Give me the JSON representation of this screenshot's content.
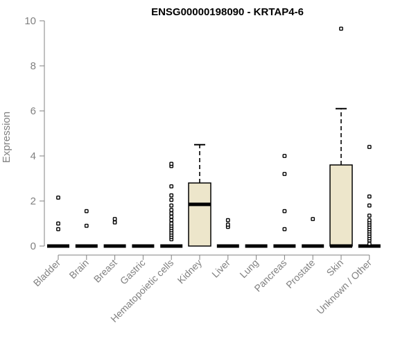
{
  "chart_data": {
    "type": "box",
    "title": "ENSG00000198090 - KRTAP4-6",
    "xlabel": "",
    "ylabel": "Expression",
    "ylim": [
      0,
      10
    ],
    "yticks": [
      0,
      2,
      4,
      6,
      8,
      10
    ],
    "categories": [
      "Bladder",
      "Brain",
      "Breast",
      "Gastric",
      "Hematopoietic cells",
      "Kidney",
      "Liver",
      "Lung",
      "Pancreas",
      "Prostate",
      "Skin",
      "Unknown / Other"
    ],
    "boxes": [
      {
        "category": "Bladder",
        "min": 0,
        "q1": 0,
        "median": 0,
        "q3": 0,
        "max": 0,
        "outliers": [
          0.75,
          1.0,
          2.15
        ]
      },
      {
        "category": "Brain",
        "min": 0,
        "q1": 0,
        "median": 0,
        "q3": 0,
        "max": 0,
        "outliers": [
          0.9,
          1.55
        ]
      },
      {
        "category": "Breast",
        "min": 0,
        "q1": 0,
        "median": 0,
        "q3": 0,
        "max": 0,
        "outliers": [
          1.05,
          1.2
        ]
      },
      {
        "category": "Gastric",
        "min": 0,
        "q1": 0,
        "median": 0,
        "q3": 0,
        "max": 0,
        "outliers": []
      },
      {
        "category": "Hematopoietic cells",
        "min": 0,
        "q1": 0,
        "median": 0,
        "q3": 0,
        "max": 0,
        "outliers": [
          0.3,
          0.4,
          0.5,
          0.6,
          0.7,
          0.8,
          0.9,
          1.0,
          1.15,
          1.3,
          1.45,
          1.6,
          1.8,
          2.05,
          2.25,
          2.65,
          3.55,
          3.65
        ]
      },
      {
        "category": "Kidney",
        "min": 0,
        "q1": 0,
        "median": 1.85,
        "q3": 2.8,
        "max": 4.5,
        "outliers": []
      },
      {
        "category": "Liver",
        "min": 0,
        "q1": 0,
        "median": 0,
        "q3": 0,
        "max": 0,
        "outliers": [
          0.85,
          0.95,
          1.15
        ]
      },
      {
        "category": "Lung",
        "min": 0,
        "q1": 0,
        "median": 0,
        "q3": 0,
        "max": 0,
        "outliers": []
      },
      {
        "category": "Pancreas",
        "min": 0,
        "q1": 0,
        "median": 0,
        "q3": 0,
        "max": 0,
        "outliers": [
          0.75,
          1.55,
          3.2,
          4.0
        ]
      },
      {
        "category": "Prostate",
        "min": 0,
        "q1": 0,
        "median": 0,
        "q3": 0,
        "max": 0,
        "outliers": [
          1.2
        ]
      },
      {
        "category": "Skin",
        "min": 0,
        "q1": 0,
        "median": 0,
        "q3": 3.6,
        "max": 6.1,
        "outliers": [
          9.65
        ]
      },
      {
        "category": "Unknown / Other",
        "min": 0,
        "q1": 0,
        "median": 0,
        "q3": 0,
        "max": 0,
        "outliers": [
          0.1,
          0.25,
          0.35,
          0.45,
          0.55,
          0.65,
          0.75,
          0.85,
          0.95,
          1.05,
          1.15,
          1.35,
          1.8,
          2.2,
          4.4
        ]
      }
    ],
    "colors": {
      "box_fill": "#ede6cb",
      "box_stroke": "#000000",
      "axis": "#808080",
      "axis_text": "#808080",
      "title": "#000000"
    },
    "grid": false,
    "legend": "none"
  }
}
